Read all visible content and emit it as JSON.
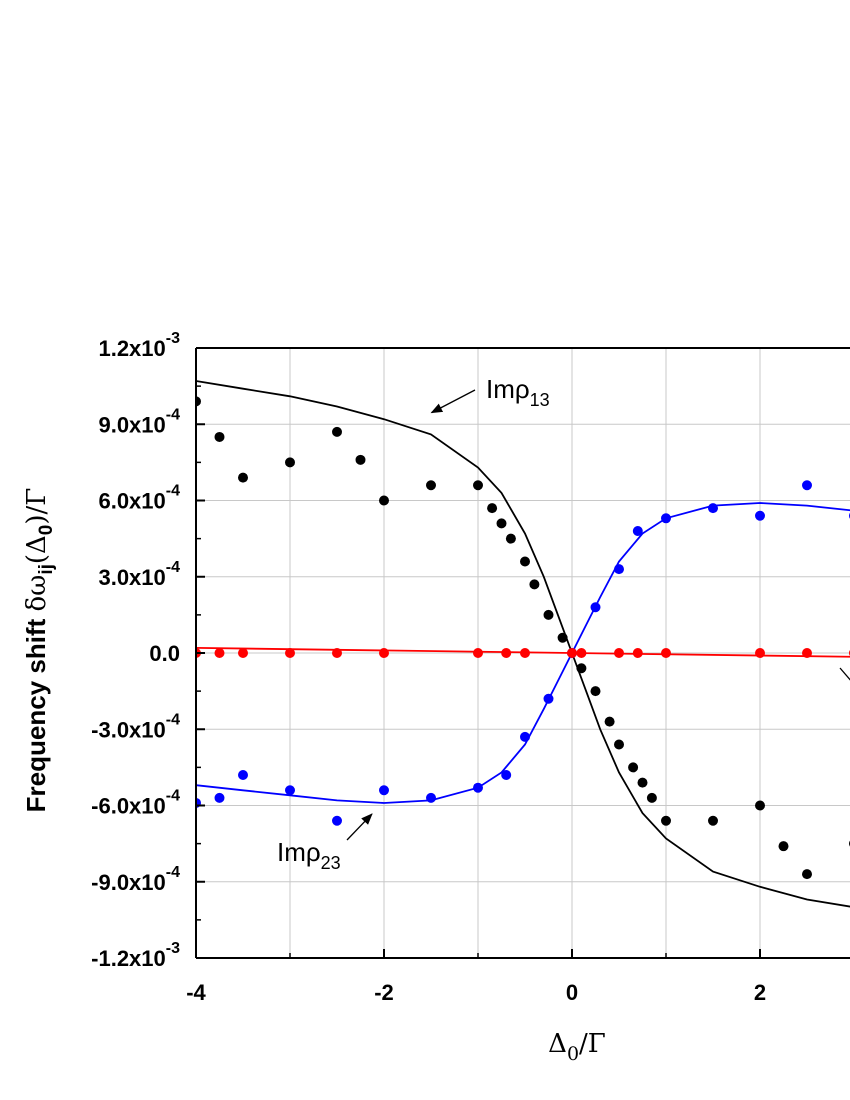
{
  "chart_data": {
    "type": "scatter",
    "xlabel": {
      "delta": "Δ",
      "sub": "0",
      "rest": "/Γ"
    },
    "ylabel": {
      "prefix": "Frequency shift ",
      "symbol": "δω",
      "sub": "ij",
      "paren_open": "(Δ",
      "sub2": "0",
      "paren_close": ")/Γ"
    },
    "xlim": [
      -4,
      3
    ],
    "ylim": [
      -0.0012,
      0.0012
    ],
    "grid": true,
    "x_ticks": [
      {
        "value": -4,
        "label": "-4"
      },
      {
        "value": -2,
        "label": "-2"
      },
      {
        "value": 0,
        "label": "0"
      },
      {
        "value": 2,
        "label": "2"
      }
    ],
    "y_ticks": [
      {
        "value": 0.0012,
        "mant": "1.2x10",
        "exp": "-3"
      },
      {
        "value": 0.0009,
        "mant": "9.0x10",
        "exp": "-4"
      },
      {
        "value": 0.0006,
        "mant": "6.0x10",
        "exp": "-4"
      },
      {
        "value": 0.0003,
        "mant": "3.0x10",
        "exp": "-4"
      },
      {
        "value": 0,
        "mant": "0.0",
        "exp": ""
      },
      {
        "value": -0.0003,
        "mant": "-3.0x10",
        "exp": "-4"
      },
      {
        "value": -0.0006,
        "mant": "-6.0x10",
        "exp": "-4"
      },
      {
        "value": -0.0009,
        "mant": "-9.0x10",
        "exp": "-4"
      },
      {
        "value": -0.0012,
        "mant": "-1.2x10",
        "exp": "-3"
      }
    ],
    "series": [
      {
        "color": "#000000",
        "kind": "line",
        "x": [
          -4,
          -3.5,
          -3,
          -2.5,
          -2,
          -1.5,
          -1,
          -0.75,
          -0.5,
          -0.3,
          -0.15,
          0,
          0.15,
          0.3,
          0.5,
          0.75,
          1,
          1.5,
          2,
          2.5,
          3
        ],
        "y": [
          0.00107,
          0.00104,
          0.00101,
          0.00097,
          0.00092,
          0.00086,
          0.00073,
          0.00063,
          0.00047,
          0.0003,
          0.00015,
          0,
          -0.00015,
          -0.0003,
          -0.00047,
          -0.00063,
          -0.00073,
          -0.00086,
          -0.00092,
          -0.00097,
          -0.001
        ]
      },
      {
        "color": "#000000",
        "kind": "points",
        "x": [
          -4,
          -3.75,
          -3.5,
          -3,
          -2.5,
          -2.25,
          -2,
          -1.5,
          -1,
          -0.85,
          -0.75,
          -0.65,
          -0.5,
          -0.4,
          -0.25,
          -0.1,
          0.1,
          0.25,
          0.4,
          0.5,
          0.65,
          0.75,
          0.85,
          1,
          1.5,
          2,
          2.25,
          2.5,
          3
        ],
        "y": [
          0.00099,
          0.00085,
          0.00069,
          0.00075,
          0.00087,
          0.00076,
          0.0006,
          0.00066,
          0.00066,
          0.00057,
          0.00051,
          0.00045,
          0.00036,
          0.00027,
          0.00015,
          6e-05,
          -6e-05,
          -0.00015,
          -0.00027,
          -0.00036,
          -0.00045,
          -0.00051,
          -0.00057,
          -0.00066,
          -0.00066,
          -0.0006,
          -0.00076,
          -0.00087,
          -0.00075
        ]
      },
      {
        "color": "#0000ff",
        "kind": "line",
        "x": [
          -4,
          -3.5,
          -3,
          -2.5,
          -2,
          -1.5,
          -1,
          -0.75,
          -0.5,
          -0.3,
          -0.15,
          0,
          0.15,
          0.3,
          0.5,
          0.75,
          1,
          1.5,
          2,
          2.5,
          3
        ],
        "y": [
          -0.00052,
          -0.00054,
          -0.00056,
          -0.00058,
          -0.00059,
          -0.00058,
          -0.00053,
          -0.00047,
          -0.00036,
          -0.00022,
          -0.00011,
          0,
          0.00011,
          0.00022,
          0.00036,
          0.00047,
          0.00053,
          0.00058,
          0.00059,
          0.00058,
          0.00056
        ]
      },
      {
        "color": "#0000ff",
        "kind": "points",
        "x": [
          -4,
          -3.75,
          -3.5,
          -3,
          -2.5,
          -2,
          -1.5,
          -1,
          -0.7,
          -0.5,
          -0.25,
          0,
          0.25,
          0.5,
          0.7,
          1,
          1.5,
          2,
          2.5,
          3
        ],
        "y": [
          -0.00059,
          -0.00057,
          -0.00048,
          -0.00054,
          -0.00066,
          -0.00054,
          -0.00057,
          -0.00053,
          -0.00048,
          -0.00033,
          -0.00018,
          0,
          0.00018,
          0.00033,
          0.00048,
          0.00053,
          0.00057,
          0.00054,
          0.00066,
          0.00054
        ]
      },
      {
        "color": "#ff0000",
        "kind": "line",
        "x": [
          -4,
          3
        ],
        "y": [
          2e-05,
          -1.5e-05
        ]
      },
      {
        "color": "#ff0000",
        "kind": "points",
        "x": [
          -4,
          -3.75,
          -3.5,
          -3,
          -2.5,
          -2,
          -1,
          -0.7,
          -0.5,
          0,
          0.1,
          0.5,
          0.7,
          1,
          2,
          2.5,
          3
        ],
        "y": [
          0,
          0,
          0,
          0,
          0,
          0,
          0,
          0,
          0,
          0,
          0,
          0,
          0,
          0,
          0,
          0,
          0
        ]
      }
    ],
    "annotations": [
      {
        "text": "Imρ",
        "sub": "13",
        "target": [
          -1.6,
          0.00093
        ]
      },
      {
        "text": "Imρ",
        "sub": "23",
        "target": [
          -2.15,
          -0.00061
        ]
      }
    ]
  }
}
